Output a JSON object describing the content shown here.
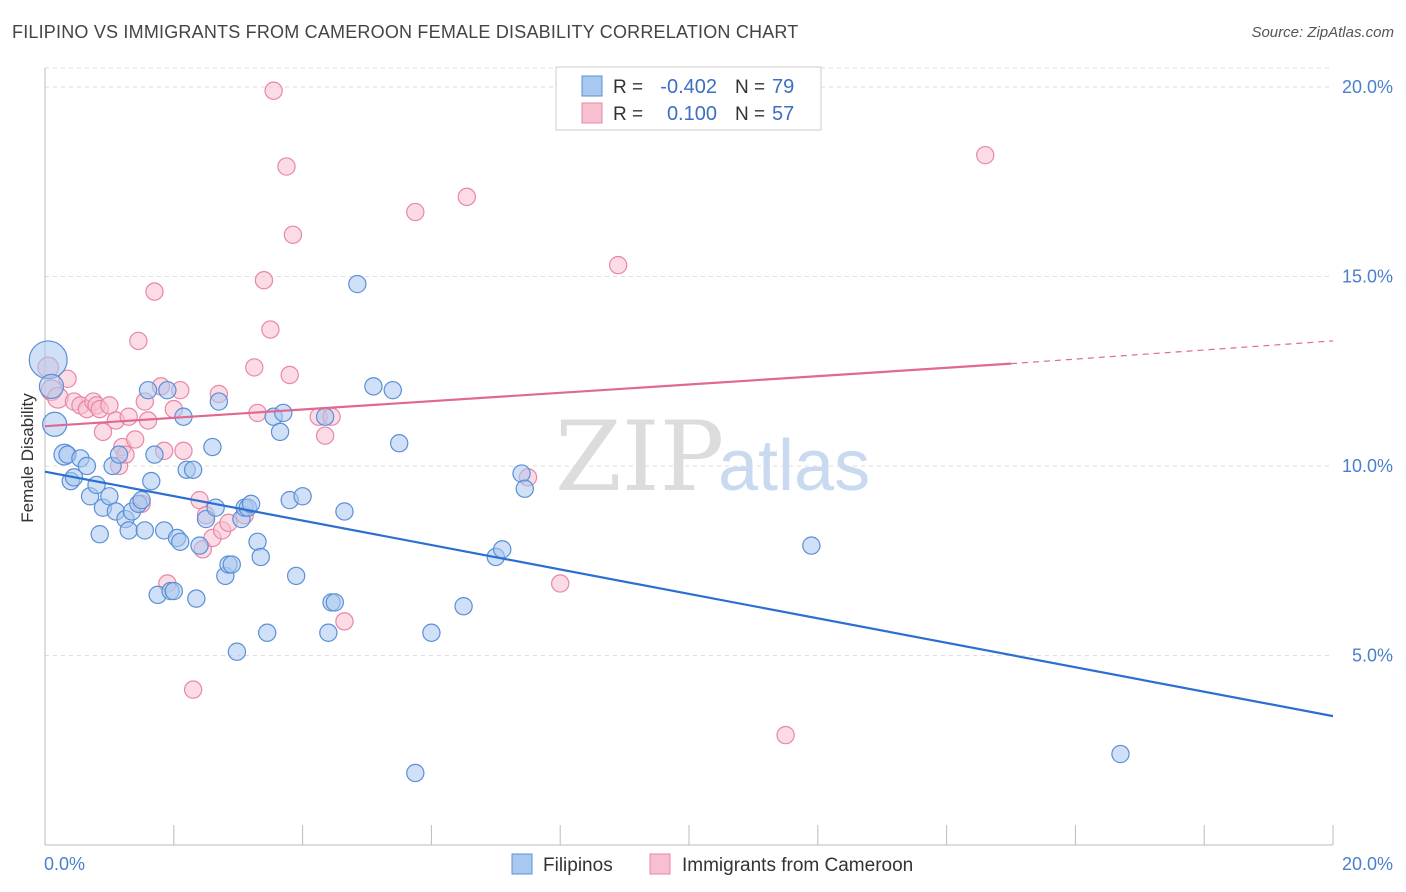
{
  "title": "FILIPINO VS IMMIGRANTS FROM CAMEROON FEMALE DISABILITY CORRELATION CHART",
  "source": "Source: ZipAtlas.com",
  "colors": {
    "blue_fill": "#a9c8f0",
    "blue_stroke": "#5b8fd6",
    "blue_line": "#2b6fd1",
    "pink_fill": "#f7bfd0",
    "pink_stroke": "#e887a8",
    "pink_line": "#e06992",
    "tick_text": "#4a7fcc",
    "grid": "#dddddd"
  },
  "watermark": {
    "zip": "ZIP",
    "atlas": "atlas"
  },
  "legend": {
    "rows": [
      {
        "r_label": "R =",
        "r_value": "-0.402",
        "n_label": "N =",
        "n_value": "79"
      },
      {
        "r_label": "R =",
        "r_value": "0.100",
        "n_label": "N =",
        "n_value": "57"
      }
    ]
  },
  "bottom_legend": {
    "items": [
      "Filipinos",
      "Immigrants from Cameroon"
    ]
  },
  "chart_data": {
    "type": "scatter",
    "title": "FILIPINO VS IMMIGRANTS FROM CAMEROON FEMALE DISABILITY CORRELATION CHART",
    "xlabel": "",
    "ylabel": "Female Disability",
    "xlim": [
      0,
      20
    ],
    "ylim": [
      0,
      20.5
    ],
    "x_tick_labels": [
      "0.0%",
      "20.0%"
    ],
    "y_ticks": [
      5,
      10,
      15,
      20
    ],
    "y_tick_labels": [
      "5.0%",
      "10.0%",
      "15.0%",
      "20.0%"
    ],
    "grid": true,
    "legend_position": "top-center",
    "series": [
      {
        "name": "Filipinos",
        "color": "#5b8fd6",
        "trend": {
          "x": [
            0,
            20
          ],
          "y": [
            9.85,
            3.4
          ]
        },
        "points": [
          [
            0.05,
            12.8,
            22
          ],
          [
            0.1,
            12.1,
            14
          ],
          [
            0.15,
            11.1,
            14
          ],
          [
            0.3,
            10.3,
            12
          ],
          [
            0.35,
            10.3,
            10
          ],
          [
            0.4,
            9.6,
            10
          ],
          [
            0.45,
            9.7,
            10
          ],
          [
            0.55,
            10.2,
            10
          ],
          [
            0.65,
            10.0,
            10
          ],
          [
            0.7,
            9.2,
            10
          ],
          [
            0.8,
            9.5,
            10
          ],
          [
            0.85,
            8.2,
            10
          ],
          [
            0.9,
            8.9,
            10
          ],
          [
            1.0,
            9.2,
            10
          ],
          [
            1.05,
            10.0,
            10
          ],
          [
            1.1,
            8.8,
            10
          ],
          [
            1.15,
            10.3,
            10
          ],
          [
            1.25,
            8.6,
            10
          ],
          [
            1.3,
            8.3,
            10
          ],
          [
            1.35,
            8.8,
            10
          ],
          [
            1.45,
            9.0,
            10
          ],
          [
            1.5,
            9.1,
            10
          ],
          [
            1.55,
            8.3,
            10
          ],
          [
            1.6,
            12.0,
            10
          ],
          [
            1.65,
            9.6,
            10
          ],
          [
            1.7,
            10.3,
            10
          ],
          [
            1.75,
            6.6,
            10
          ],
          [
            1.85,
            8.3,
            10
          ],
          [
            1.9,
            12.0,
            10
          ],
          [
            1.95,
            6.7,
            10
          ],
          [
            2.0,
            6.7,
            10
          ],
          [
            2.05,
            8.1,
            10
          ],
          [
            2.1,
            8.0,
            10
          ],
          [
            2.15,
            11.3,
            10
          ],
          [
            2.2,
            9.9,
            10
          ],
          [
            2.3,
            9.9,
            10
          ],
          [
            2.35,
            6.5,
            10
          ],
          [
            2.4,
            7.9,
            10
          ],
          [
            2.5,
            8.6,
            10
          ],
          [
            2.6,
            10.5,
            10
          ],
          [
            2.65,
            8.9,
            10
          ],
          [
            2.7,
            11.7,
            10
          ],
          [
            2.8,
            7.1,
            10
          ],
          [
            2.85,
            7.4,
            10
          ],
          [
            2.9,
            7.4,
            10
          ],
          [
            2.98,
            5.1,
            10
          ],
          [
            3.05,
            8.6,
            10
          ],
          [
            3.1,
            8.9,
            10
          ],
          [
            3.15,
            8.9,
            10
          ],
          [
            3.2,
            9.0,
            10
          ],
          [
            3.3,
            8.0,
            10
          ],
          [
            3.35,
            7.6,
            10
          ],
          [
            3.45,
            5.6,
            10
          ],
          [
            3.55,
            11.3,
            10
          ],
          [
            3.65,
            10.9,
            10
          ],
          [
            3.7,
            11.4,
            10
          ],
          [
            3.8,
            9.1,
            10
          ],
          [
            3.9,
            7.1,
            10
          ],
          [
            4.0,
            9.2,
            10
          ],
          [
            4.35,
            11.3,
            10
          ],
          [
            4.4,
            5.6,
            10
          ],
          [
            4.45,
            6.4,
            10
          ],
          [
            4.5,
            6.4,
            10
          ],
          [
            4.65,
            8.8,
            10
          ],
          [
            4.85,
            14.8,
            10
          ],
          [
            5.1,
            12.1,
            10
          ],
          [
            5.4,
            12.0,
            10
          ],
          [
            5.5,
            10.6,
            10
          ],
          [
            5.75,
            1.9,
            10
          ],
          [
            6.0,
            5.6,
            10
          ],
          [
            6.5,
            6.3,
            10
          ],
          [
            7.0,
            7.6,
            10
          ],
          [
            7.1,
            7.8,
            10
          ],
          [
            7.4,
            9.8,
            10
          ],
          [
            7.45,
            9.4,
            10
          ],
          [
            11.9,
            7.9,
            10
          ],
          [
            16.7,
            2.4,
            10
          ]
        ]
      },
      {
        "name": "Immigrants from Cameroon",
        "color": "#e887a8",
        "trend": {
          "x": [
            0,
            15.0
          ],
          "y": [
            11.05,
            12.7
          ],
          "dashed_to": [
            20,
            13.3
          ]
        },
        "points": [
          [
            0.05,
            12.6,
            12
          ],
          [
            0.1,
            12.0,
            12
          ],
          [
            0.2,
            11.8,
            12
          ],
          [
            0.35,
            12.3,
            10
          ],
          [
            0.45,
            11.7,
            10
          ],
          [
            0.55,
            11.6,
            10
          ],
          [
            0.65,
            11.5,
            10
          ],
          [
            0.75,
            11.7,
            10
          ],
          [
            0.8,
            11.6,
            10
          ],
          [
            0.85,
            11.5,
            10
          ],
          [
            0.9,
            10.9,
            10
          ],
          [
            1.0,
            11.6,
            10
          ],
          [
            1.1,
            11.2,
            10
          ],
          [
            1.15,
            10.0,
            10
          ],
          [
            1.2,
            10.5,
            10
          ],
          [
            1.25,
            10.3,
            10
          ],
          [
            1.3,
            11.3,
            10
          ],
          [
            1.4,
            10.7,
            10
          ],
          [
            1.45,
            13.3,
            10
          ],
          [
            1.5,
            9.0,
            10
          ],
          [
            1.55,
            11.7,
            10
          ],
          [
            1.6,
            11.2,
            10
          ],
          [
            1.7,
            14.6,
            10
          ],
          [
            1.8,
            12.1,
            10
          ],
          [
            1.85,
            10.4,
            10
          ],
          [
            1.9,
            6.9,
            10
          ],
          [
            2.0,
            11.5,
            10
          ],
          [
            2.1,
            12.0,
            10
          ],
          [
            2.15,
            10.4,
            10
          ],
          [
            2.3,
            4.1,
            10
          ],
          [
            2.4,
            9.1,
            10
          ],
          [
            2.45,
            7.8,
            10
          ],
          [
            2.5,
            8.7,
            10
          ],
          [
            2.6,
            8.1,
            10
          ],
          [
            2.7,
            11.9,
            10
          ],
          [
            2.75,
            8.3,
            10
          ],
          [
            2.85,
            8.5,
            10
          ],
          [
            3.1,
            8.7,
            10
          ],
          [
            3.25,
            12.6,
            10
          ],
          [
            3.3,
            11.4,
            10
          ],
          [
            3.4,
            14.9,
            10
          ],
          [
            3.5,
            13.6,
            10
          ],
          [
            3.55,
            19.9,
            10
          ],
          [
            3.75,
            17.9,
            10
          ],
          [
            3.8,
            12.4,
            10
          ],
          [
            3.85,
            16.1,
            10
          ],
          [
            4.25,
            11.3,
            10
          ],
          [
            4.35,
            10.8,
            10
          ],
          [
            4.45,
            11.3,
            10
          ],
          [
            4.65,
            5.9,
            10
          ],
          [
            5.75,
            16.7,
            10
          ],
          [
            6.55,
            17.1,
            10
          ],
          [
            7.5,
            9.7,
            10
          ],
          [
            8.0,
            6.9,
            10
          ],
          [
            8.9,
            15.3,
            10
          ],
          [
            11.5,
            2.9,
            10
          ],
          [
            14.6,
            18.2,
            10
          ]
        ]
      }
    ]
  }
}
